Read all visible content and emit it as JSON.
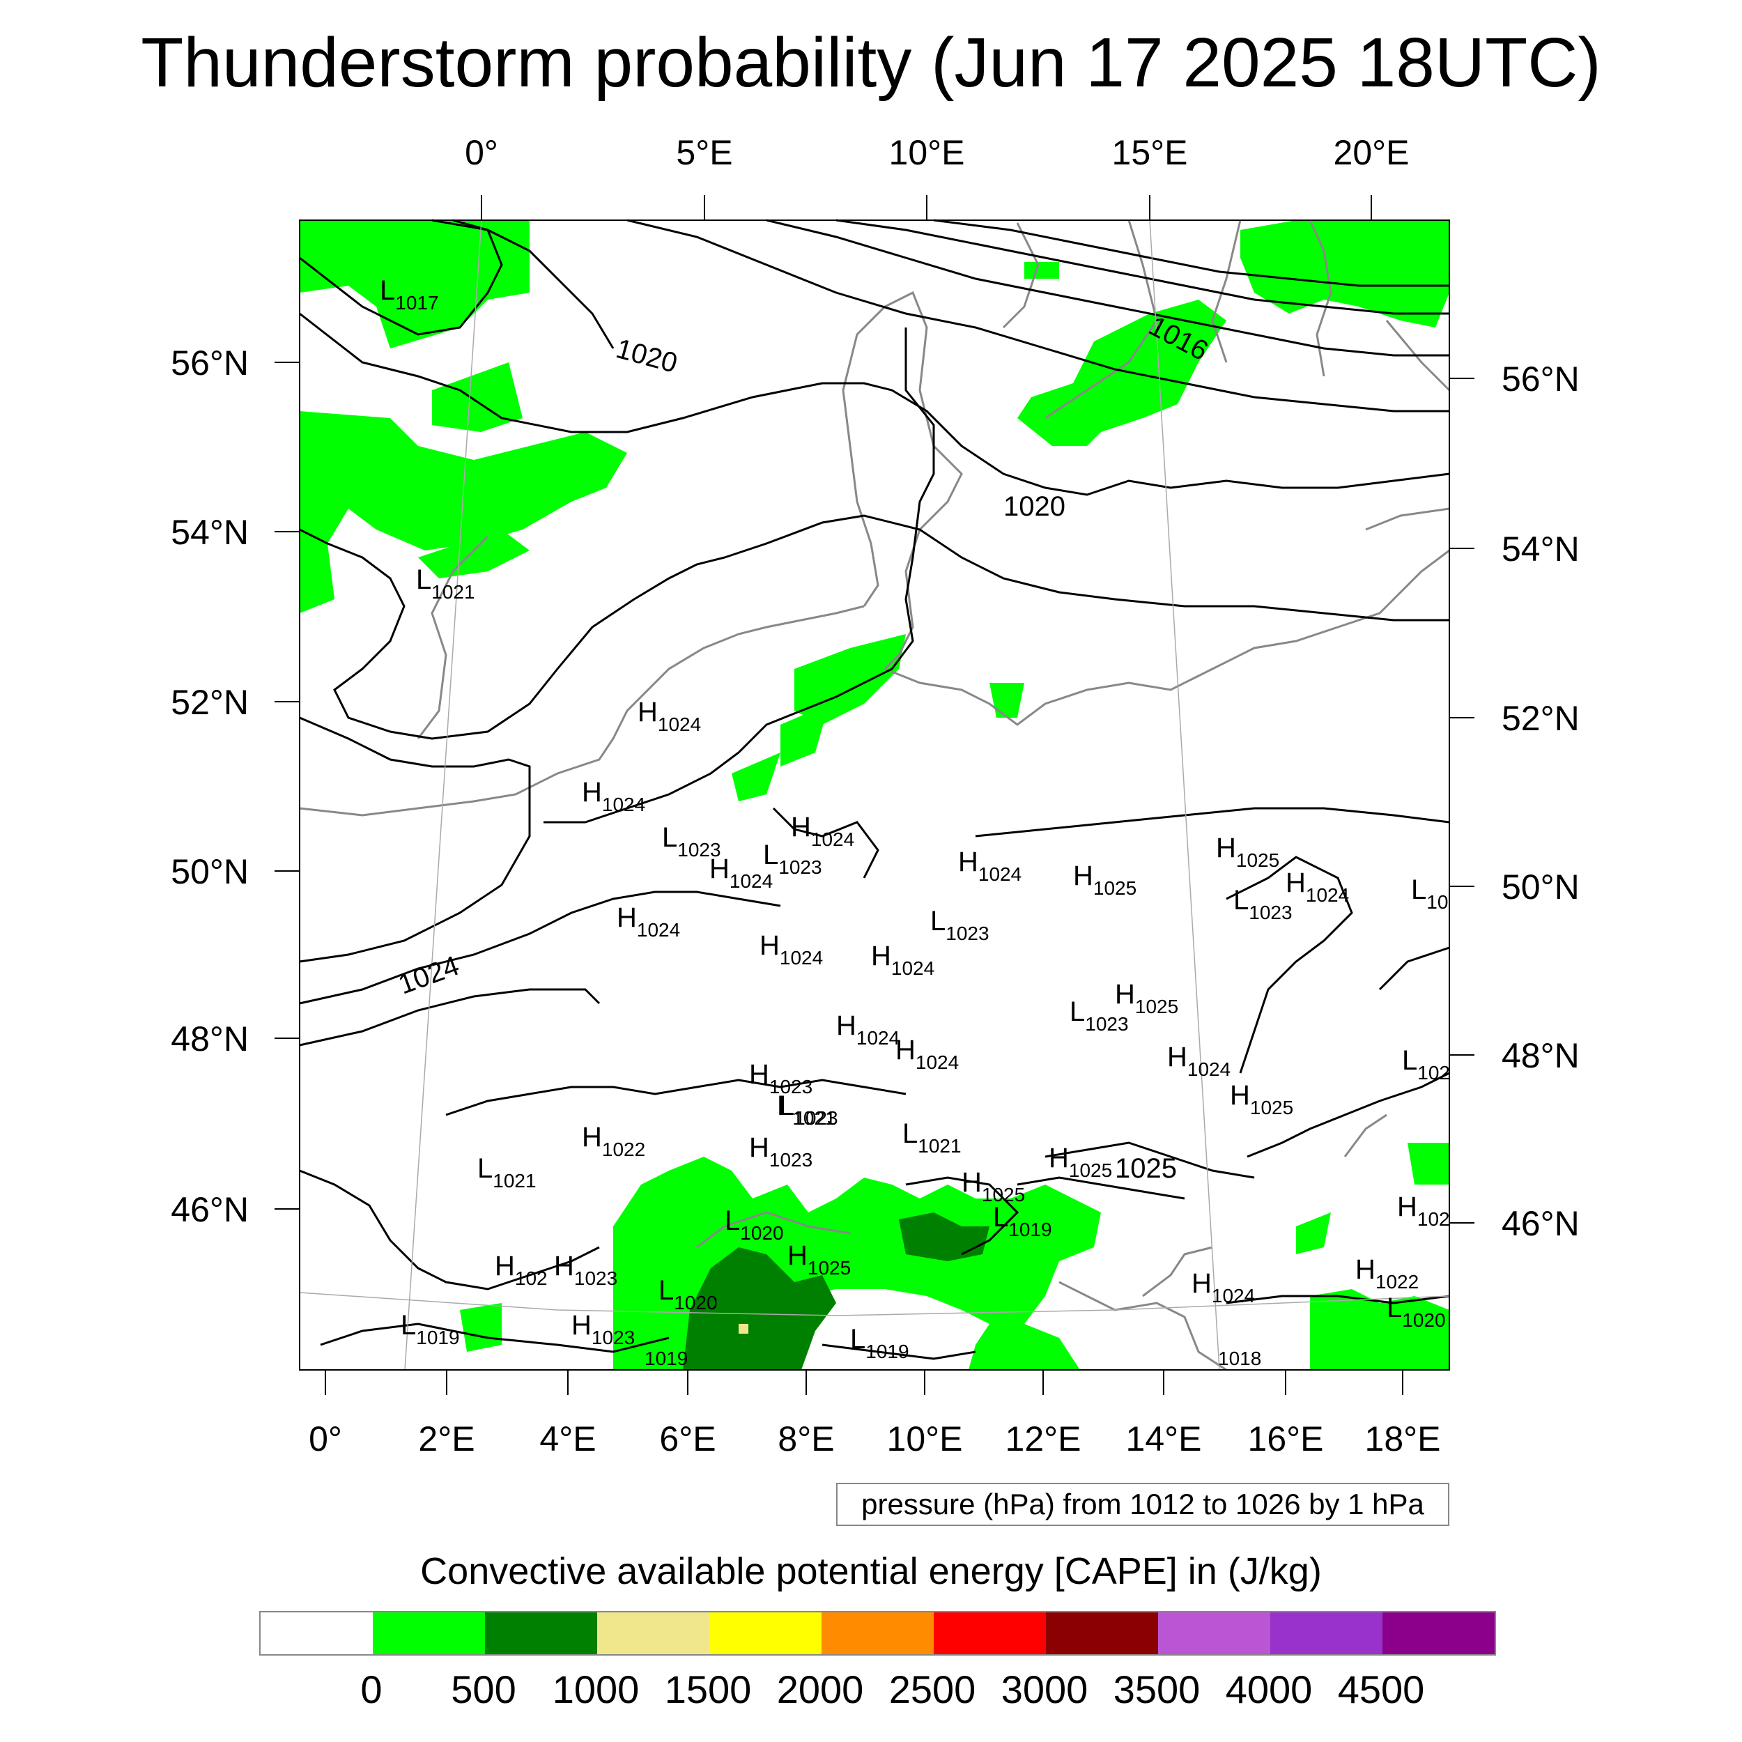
{
  "title": "Thunderstorm probability (Jun 17 2025 18UTC)",
  "top_lon_labels": [
    "0°",
    "5°E",
    "10°E",
    "15°E",
    "20°E"
  ],
  "bottom_lon_labels": [
    "0°",
    "2°E",
    "4°E",
    "6°E",
    "8°E",
    "10°E",
    "12°E",
    "14°E",
    "16°E",
    "18°E"
  ],
  "left_lat_labels": [
    "56°N",
    "54°N",
    "52°N",
    "50°N",
    "48°N",
    "46°N"
  ],
  "right_lat_labels": [
    "56°N",
    "54°N",
    "52°N",
    "50°N",
    "48°N",
    "46°N"
  ],
  "isobar_labels": [
    "1020",
    "1016",
    "1020",
    "1024"
  ],
  "pressure_centers": [
    {
      "kind": "L",
      "value": "1017"
    },
    {
      "kind": "L",
      "value": "1021"
    },
    {
      "kind": "H",
      "value": "1024"
    },
    {
      "kind": "H",
      "value": "1024"
    },
    {
      "kind": "L",
      "value": "1023"
    },
    {
      "kind": "H",
      "value": "1024"
    },
    {
      "kind": "L",
      "value": "1023"
    },
    {
      "kind": "H",
      "value": "1024"
    },
    {
      "kind": "H",
      "value": "1024"
    },
    {
      "kind": "H",
      "value": "1024"
    },
    {
      "kind": "H",
      "value": "1024"
    },
    {
      "kind": "H",
      "value": "1024"
    },
    {
      "kind": "H",
      "value": "1025"
    },
    {
      "kind": "L",
      "value": "1023"
    },
    {
      "kind": "H",
      "value": "1025"
    },
    {
      "kind": "L",
      "value": "1023"
    },
    {
      "kind": "H",
      "value": "1024"
    },
    {
      "kind": "H",
      "value": "1024"
    },
    {
      "kind": "L",
      "value": "1023"
    },
    {
      "kind": "H",
      "value": "1025"
    },
    {
      "kind": "H",
      "value": "1024"
    },
    {
      "kind": "H",
      "value": "1024"
    },
    {
      "kind": "H",
      "value": "1023"
    },
    {
      "kind": "L",
      "value": "1023"
    },
    {
      "kind": "L",
      "value": "1021"
    },
    {
      "kind": "H",
      "value": "1025"
    },
    {
      "kind": "H",
      "value": "1022"
    },
    {
      "kind": "H",
      "value": "1023"
    },
    {
      "kind": "L",
      "value": "1021"
    },
    {
      "kind": "L",
      "value": "1021"
    },
    {
      "kind": "H",
      "value": "1025"
    },
    {
      "kind": "1025",
      "value": ""
    },
    {
      "kind": "H",
      "value": "1025"
    },
    {
      "kind": "L",
      "value": "1020"
    },
    {
      "kind": "L",
      "value": "1019"
    },
    {
      "kind": "H",
      "value": "1025"
    },
    {
      "kind": "H",
      "value": "102"
    },
    {
      "kind": "H",
      "value": "1023"
    },
    {
      "kind": "L",
      "value": "1020"
    },
    {
      "kind": "H",
      "value": "1024"
    },
    {
      "kind": "H",
      "value": "1022"
    },
    {
      "kind": "L",
      "value": "1020"
    },
    {
      "kind": "L",
      "value": "1019"
    },
    {
      "kind": "H",
      "value": "1023"
    },
    {
      "kind": "",
      "value": "1019"
    },
    {
      "kind": "L",
      "value": "1019"
    },
    {
      "kind": "",
      "value": "1018"
    },
    {
      "kind": "L",
      "value": "10"
    },
    {
      "kind": "L",
      "value": "102"
    },
    {
      "kind": "H",
      "value": "102"
    }
  ],
  "contour_note": "pressure (hPa) from 1012 to 1026 by 1 hPa",
  "colorbar": {
    "title": "Convective available potential energy [CAPE] in (J/kg)",
    "colors": [
      "#ffffff",
      "#00ff00",
      "#008000",
      "#f0e68c",
      "#ffff00",
      "#ff8c00",
      "#ff0000",
      "#8b0000",
      "#ba55d3",
      "#9932cc",
      "#8b008b"
    ],
    "ticks": [
      "0",
      "500",
      "1000",
      "1500",
      "2000",
      "2500",
      "3000",
      "3500",
      "4000",
      "4500"
    ]
  },
  "colors": {
    "cape_0_500": "#00ff00",
    "cape_500_1000": "#008000",
    "coastline": "#888888",
    "isobar": "#000000"
  }
}
